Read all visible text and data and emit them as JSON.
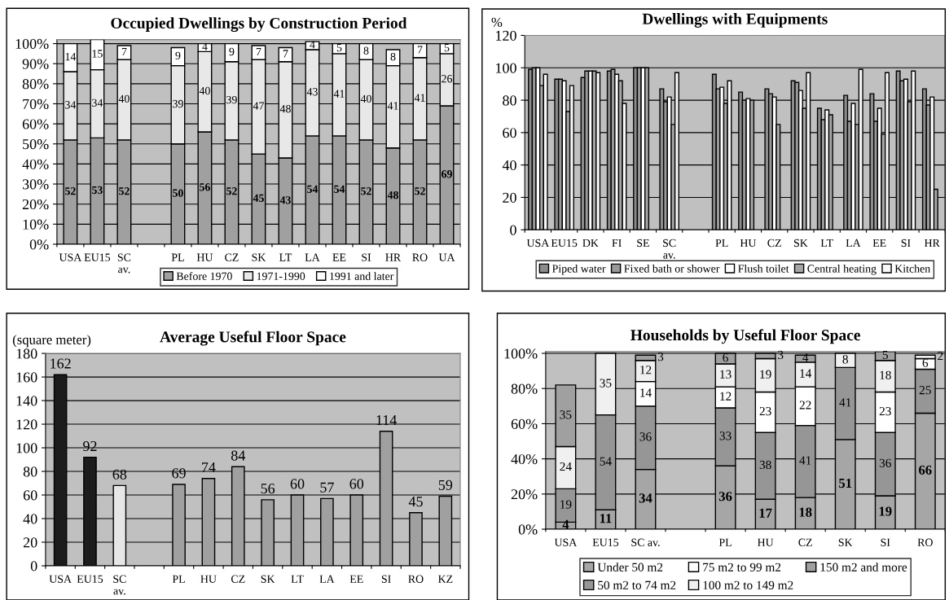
{
  "chart_data": [
    {
      "type": "bar",
      "title": "Occupied Dwellings by Construction Period",
      "stacked": true,
      "data_labels": true,
      "legend": "bottom",
      "grid": "y",
      "categories": [
        "USA",
        "EU15",
        "SC\nav.",
        null,
        "PL",
        "HU",
        "CZ",
        "SK",
        "LT",
        "LA",
        "EE",
        "SI",
        "HR",
        "RO",
        "UA"
      ],
      "ylim": [
        0,
        102
      ],
      "yticks": [
        {
          "value": 0,
          "label": "0%"
        },
        {
          "value": 10,
          "label": "10%"
        },
        {
          "value": 20,
          "label": "20%"
        },
        {
          "value": 30,
          "label": "30%"
        },
        {
          "value": 40,
          "label": "40%"
        },
        {
          "value": 50,
          "label": "50%"
        },
        {
          "value": 60,
          "label": "60%"
        },
        {
          "value": 70,
          "label": "70%"
        },
        {
          "value": 80,
          "label": "80%"
        },
        {
          "value": 90,
          "label": "90%"
        },
        {
          "value": 100,
          "label": "100%"
        }
      ],
      "series": [
        {
          "name": "Before 1970",
          "color": "#a0a0a0",
          "values": [
            52,
            53,
            52,
            null,
            50,
            56,
            52,
            45,
            43,
            54,
            54,
            52,
            48,
            52,
            69
          ]
        },
        {
          "name": "1971-1990",
          "color": "#e8e8e8",
          "values": [
            34,
            34,
            40,
            null,
            39,
            40,
            39,
            47,
            48,
            43,
            41,
            40,
            41,
            41,
            26
          ]
        },
        {
          "name": "1991 and later",
          "color": "#ffffff",
          "values": [
            14,
            15,
            7,
            null,
            9,
            4,
            9,
            7,
            7,
            4,
            5,
            8,
            8,
            7,
            5
          ]
        }
      ]
    },
    {
      "type": "bar",
      "title": "Dwellings with Equipments",
      "ylabel": "%",
      "legend": "bottom",
      "grid": "y",
      "categories": [
        "USA",
        "EU15",
        "DK",
        "FI",
        "SE",
        "SC\nav.",
        null,
        "PL",
        "HU",
        "CZ",
        "SK",
        "LT",
        "LA",
        "EE",
        "SI",
        "HR"
      ],
      "ylim": [
        0,
        120
      ],
      "yticks": [
        0,
        20,
        40,
        60,
        80,
        100,
        120
      ],
      "series": [
        {
          "name": "Piped water",
          "color": "#8c8c8c",
          "values": [
            99,
            93,
            94,
            98,
            100,
            87,
            null,
            96,
            85,
            87,
            92,
            75,
            83,
            84,
            98,
            87
          ]
        },
        {
          "name": "Fixed bath or shower",
          "color": "#999999",
          "values": [
            100,
            93,
            98,
            99,
            100,
            79,
            null,
            87,
            80,
            84,
            91,
            68,
            67,
            67,
            92,
            77
          ]
        },
        {
          "name": "Flush toilet",
          "color": "#ffffff",
          "values": [
            100,
            92,
            98,
            96,
            100,
            82,
            null,
            88,
            81,
            82,
            86,
            74,
            78,
            75,
            93,
            82
          ]
        },
        {
          "name": "Central heating",
          "color": "#a6a6a6",
          "values": [
            89,
            73,
            98,
            92,
            100,
            65,
            null,
            78,
            80,
            65,
            75,
            71,
            65,
            59,
            79,
            25
          ]
        },
        {
          "name": "Kitchen",
          "color": "#f8f8f8",
          "values": [
            96,
            89,
            97,
            78,
            null,
            97,
            null,
            92,
            null,
            null,
            97,
            null,
            99,
            97,
            98,
            null
          ]
        }
      ]
    },
    {
      "type": "bar",
      "title": "Average Useful Floor Space",
      "ylabel": "(square meter)",
      "data_labels": true,
      "grid": "y",
      "categories": [
        "USA",
        "EU15",
        "SC\nav.",
        null,
        "PL",
        "HU",
        "CZ",
        "SK",
        "LT",
        "LA",
        "EE",
        "SI",
        "RO",
        "KZ"
      ],
      "ylim": [
        0,
        180
      ],
      "yticks": [
        0,
        20,
        40,
        60,
        80,
        100,
        120,
        140,
        160,
        180
      ],
      "values": [
        162,
        92,
        68,
        null,
        69,
        74,
        84,
        56,
        60,
        57,
        60,
        114,
        45,
        59
      ],
      "colors": [
        "#1c1c1c",
        "#1c1c1c",
        "#e6e6e6",
        "#a0a0a0",
        "#a0a0a0",
        "#a0a0a0",
        "#a0a0a0",
        "#a0a0a0",
        "#a0a0a0",
        "#a0a0a0",
        "#a0a0a0",
        "#a0a0a0",
        "#a0a0a0",
        "#a0a0a0"
      ]
    },
    {
      "type": "bar",
      "title": "Households by Useful Floor Space",
      "stacked": true,
      "data_labels": true,
      "legend": "bottom",
      "grid": "y",
      "categories": [
        "USA",
        "EU15",
        "SC av.",
        null,
        "PL",
        "HU",
        "CZ",
        "SK",
        "SI",
        "RO"
      ],
      "ylim": [
        0,
        101
      ],
      "yticks": [
        {
          "value": 0,
          "label": "0%"
        },
        {
          "value": 20,
          "label": "20%"
        },
        {
          "value": 40,
          "label": "40%"
        },
        {
          "value": 60,
          "label": "60%"
        },
        {
          "value": 80,
          "label": "80%"
        },
        {
          "value": 100,
          "label": "100%"
        }
      ],
      "series": [
        {
          "name": "Under 50 m2",
          "color": "#a6a6a6",
          "values": [
            4,
            11,
            34,
            null,
            36,
            17,
            18,
            51,
            19,
            66
          ]
        },
        {
          "name": "50 m2 to 74 m2",
          "color": "#969696",
          "values": [
            19,
            54,
            36,
            null,
            33,
            38,
            41,
            41,
            36,
            25
          ]
        },
        {
          "name": "75 m2 to 99 m2",
          "color": "#ffffff",
          "values": [
            null,
            null,
            14,
            null,
            12,
            23,
            22,
            null,
            23,
            6
          ]
        },
        {
          "name": "100 m2 to 149 m2",
          "color": "#f0f0f0",
          "values": [
            24,
            35,
            12,
            null,
            13,
            19,
            14,
            8,
            18,
            2
          ]
        },
        {
          "name": "150 m2 and more",
          "color": "#a0a0a0",
          "values": [
            35,
            null,
            3,
            null,
            6,
            3,
            4,
            null,
            5,
            null
          ]
        }
      ]
    }
  ]
}
